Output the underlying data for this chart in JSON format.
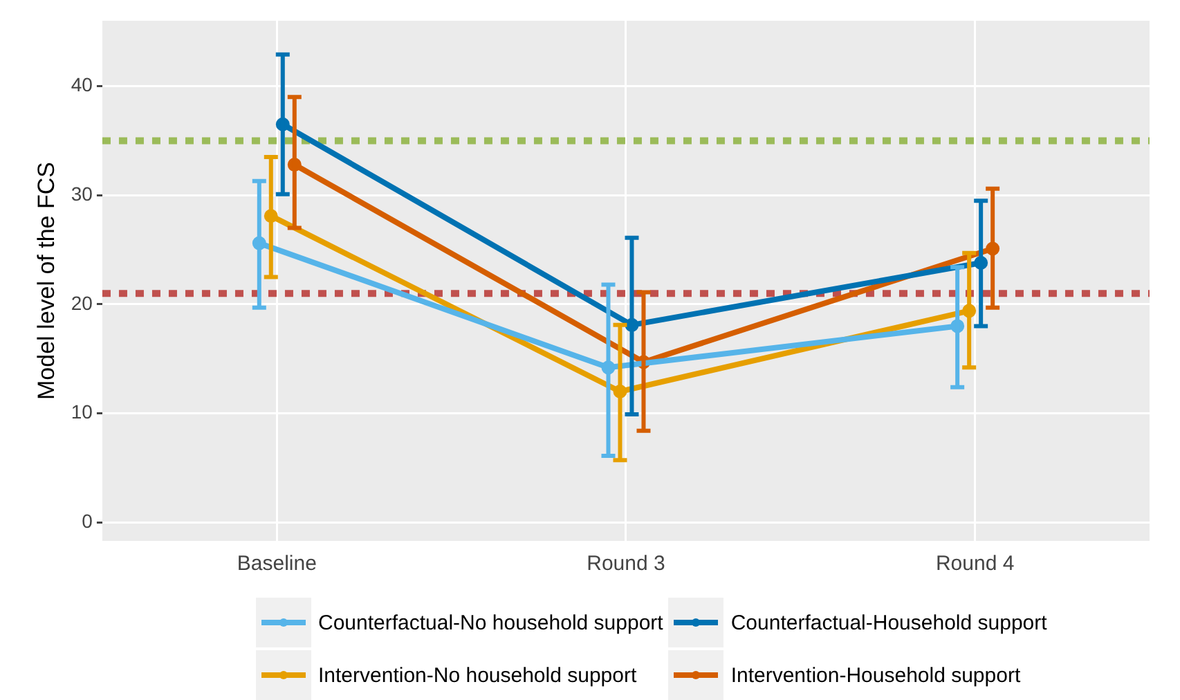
{
  "chart_data": {
    "type": "line",
    "ylabel": "Model level of the FCS",
    "categories": [
      "Baseline",
      "Round 3",
      "Round 4"
    ],
    "series": [
      {
        "name": "Counterfactual-No household support",
        "color": "#56b4e9",
        "values": [
          25.6,
          14.2,
          18.0
        ],
        "errors": [
          [
            19.7,
            31.3
          ],
          [
            6.1,
            21.8
          ],
          [
            12.4,
            23.4
          ]
        ]
      },
      {
        "name": "Intervention-No household support",
        "color": "#e69f00",
        "values": [
          28.1,
          12.0,
          19.4
        ],
        "errors": [
          [
            22.5,
            33.5
          ],
          [
            5.7,
            18.1
          ],
          [
            14.2,
            24.7
          ]
        ]
      },
      {
        "name": "Counterfactual-Household support",
        "color": "#0072b2",
        "values": [
          36.5,
          18.1,
          23.8
        ],
        "errors": [
          [
            30.1,
            42.9
          ],
          [
            9.9,
            26.1
          ],
          [
            18.0,
            29.5
          ]
        ]
      },
      {
        "name": "Intervention-Household support",
        "color": "#d55e00",
        "values": [
          32.8,
          14.7,
          25.1
        ],
        "errors": [
          [
            27.0,
            39.0
          ],
          [
            8.4,
            21.1
          ],
          [
            19.7,
            30.6
          ]
        ]
      }
    ],
    "ylim": [
      -1.7,
      46
    ],
    "yticks": [
      0,
      10,
      20,
      30,
      40
    ],
    "grid": true,
    "legend": "bottom",
    "marker": "circle",
    "line_style": "solid",
    "ref_lines": [
      {
        "axis": "y",
        "value": 35,
        "color": "#9bbb59",
        "line_style": "dotted"
      },
      {
        "axis": "y",
        "value": 21,
        "color": "#c0504d",
        "line_style": "dotted"
      }
    ]
  }
}
